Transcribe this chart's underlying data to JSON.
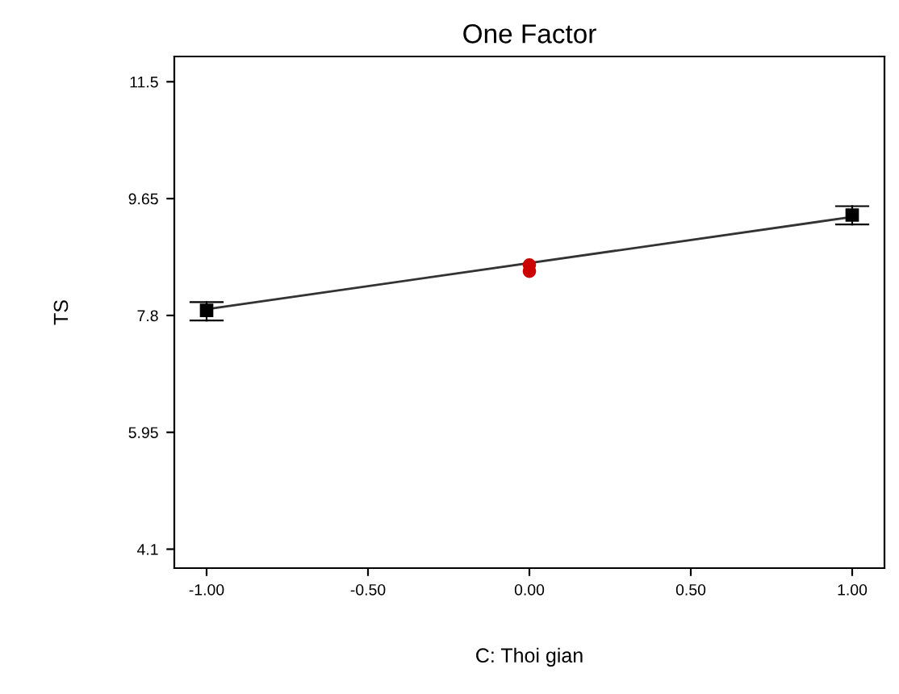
{
  "chart_data": {
    "type": "scatter",
    "title": "One Factor",
    "xlabel": "C: Thoi gian",
    "ylabel": "TS",
    "xlim": [
      -1.1,
      1.1
    ],
    "xticks": [
      {
        "value": -1,
        "label": "-1.00"
      },
      {
        "value": -0.5,
        "label": "-0.50"
      },
      {
        "value": 0,
        "label": "0.00"
      },
      {
        "value": 0.5,
        "label": "0.50"
      },
      {
        "value": 1,
        "label": "1.00"
      }
    ],
    "ylim": [
      3.8,
      11.9
    ],
    "yticks": [
      4.1,
      5.95,
      7.8,
      9.65,
      11.5
    ],
    "grid": false,
    "legend": false,
    "series": [
      {
        "type": "line",
        "x": [
          -1,
          1
        ],
        "values": [
          7.9,
          9.36
        ],
        "color": "#333333",
        "marker": "none",
        "line_style": "solid"
      },
      {
        "x": [
          -1,
          1
        ],
        "values": [
          7.88,
          9.39
        ],
        "errors": [
          [
            7.72,
            8.01
          ],
          [
            9.24,
            9.53
          ]
        ],
        "color": "#000000",
        "marker": "square"
      },
      {
        "x": [
          0,
          0
        ],
        "values": [
          8.5,
          8.6
        ],
        "color": "#cc0000",
        "marker": "circle"
      }
    ]
  }
}
